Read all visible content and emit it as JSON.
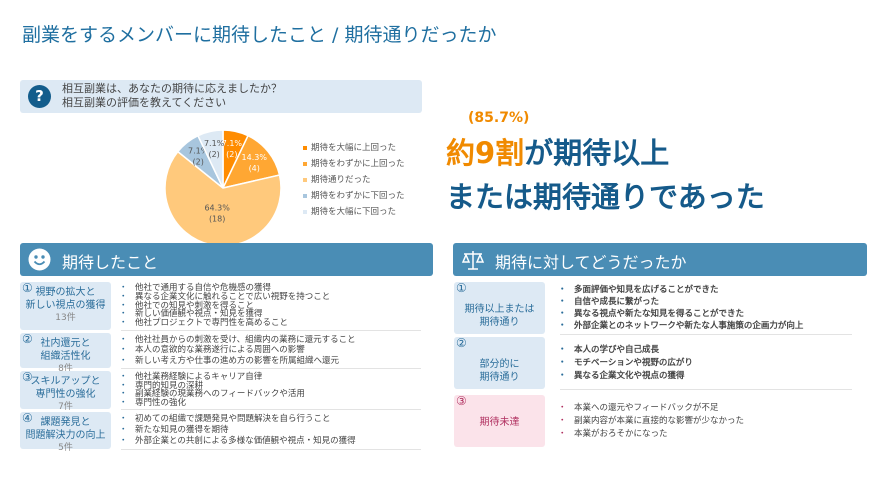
{
  "title": "副業をするメンバーに期待したこと / 期待通りだったか",
  "question": {
    "icon": "question-icon",
    "line1": "相互副業は、あなたの期待に応えましたか？",
    "line2": "相互副業の評価を教えてください"
  },
  "chart_data": {
    "type": "pie",
    "legend_position": "right",
    "slices": [
      {
        "name": "期待を大幅に上回った",
        "percent": 7.1,
        "count": 2,
        "label": "7.1%",
        "count_label": "(2)",
        "color": "#ff8c00"
      },
      {
        "name": "期待をわずかに上回った",
        "percent": 14.3,
        "count": 4,
        "label": "14.3%",
        "count_label": "(4)",
        "color": "#ffa733"
      },
      {
        "name": "期待通りだった",
        "percent": 64.3,
        "count": 18,
        "label": "64.3%",
        "count_label": "(18)",
        "color": "#ffc97c"
      },
      {
        "name": "期待をわずかに下回った",
        "percent": 7.1,
        "count": 2,
        "label": "7.1%",
        "count_label": "(2)",
        "color": "#a8c6de"
      },
      {
        "name": "期待を大幅に下回った",
        "percent": 7.1,
        "count": 2,
        "label": "7.1%",
        "count_label": "(2)",
        "color": "#dde9f4"
      }
    ]
  },
  "callout": {
    "percent": "(85.7%)",
    "highlight": "約9割",
    "line1_rest": "が期待以上",
    "line2": "または期待通りであった"
  },
  "expected": {
    "title": "期待したこと",
    "icon": "smiley-icon",
    "groups": [
      {
        "num": "①",
        "label1": "視野の拡大と",
        "label2": "新しい視点の獲得",
        "count": "13件",
        "items": [
          "他社で通用する自信や危機感の獲得",
          "異なる企業文化に触れることで広い視野を持つこと",
          "他社での知見や刺激を得ること",
          "新しい価値観や視点・知見を獲得",
          "他社プロジェクトで専門性を高めること"
        ]
      },
      {
        "num": "②",
        "label1": "社内還元と",
        "label2": "組織活性化",
        "count": "8件",
        "items": [
          "他社社員からの刺激を受け、組織内の業務に還元すること",
          "本人の意欲的な業務遂行による周囲への影響",
          "新しい考え方や仕事の進め方の影響を所属組織へ還元"
        ]
      },
      {
        "num": "③",
        "label1": "スキルアップと",
        "label2": "専門性の強化",
        "count": "7件",
        "items": [
          "他社業務経験によるキャリア自律",
          "専門的知見の深耕",
          "副業経験の現業務へのフィードバックや活用",
          "専門性の強化"
        ]
      },
      {
        "num": "④",
        "label1": "課題発見と",
        "label2": "問題解決力の向上",
        "count": "5件",
        "items": [
          "初めての組織で課題発見や問題解決を自ら行うこと",
          "新たな知見の獲得を期待",
          "外部企業との共創による多様な価値観や視点・知見の獲得"
        ]
      }
    ]
  },
  "result": {
    "title": "期待に対してどうだったか",
    "icon": "scale-icon",
    "groups": [
      {
        "num": "①",
        "label1": "期待以上または",
        "label2": "期待通り",
        "items": [
          "多面評価や知見を広げることができた",
          "自信や成長に繋がった",
          "異なる視点や新たな知見を得ることができた",
          "外部企業とのネットワークや新たな人事施策の企画力が向上"
        ]
      },
      {
        "num": "②",
        "label1": "部分的に",
        "label2": "期待通り",
        "items": [
          "本人の学びや自己成長",
          "モチベーションや視野の広がり",
          "異なる企業文化や視点の獲得"
        ]
      },
      {
        "num": "③",
        "label1": "期待未達",
        "label2": "",
        "items": [
          "本業への還元やフィードバックが不足",
          "副業内容が本業に直接的な影響が少なかった",
          "本業がおろそかになった"
        ]
      }
    ]
  }
}
